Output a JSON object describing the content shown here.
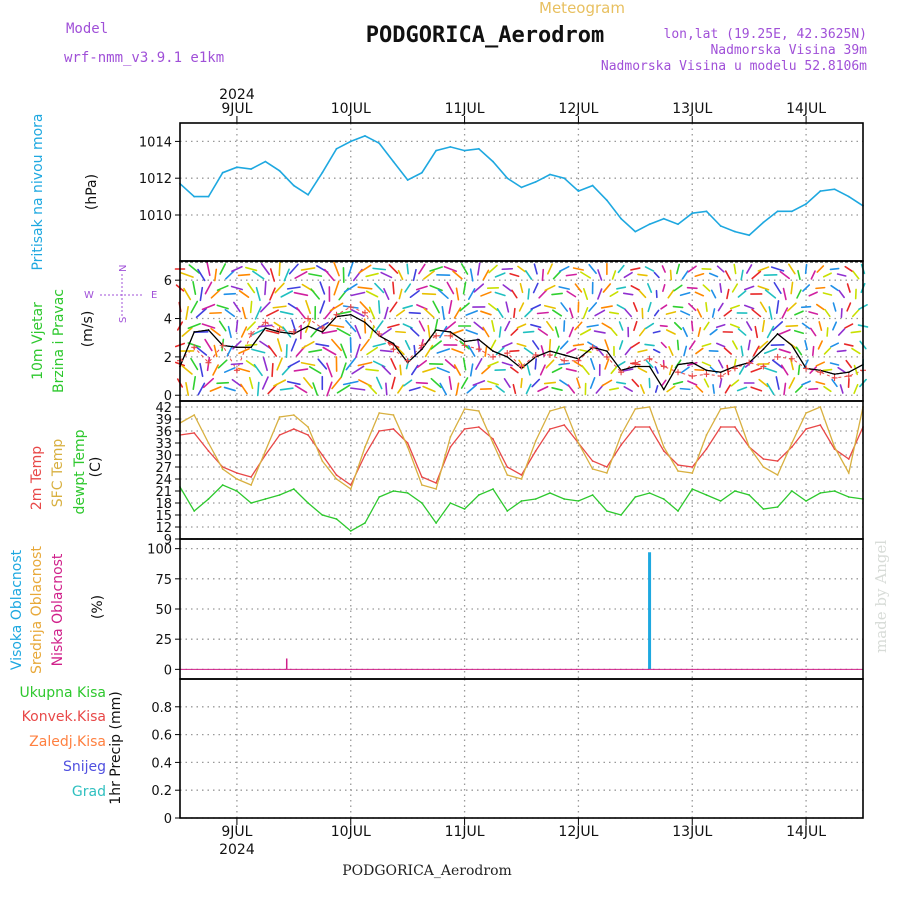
{
  "header": {
    "model_label": "Model",
    "model_name": "wrf-nmm_v3.9.1  e1km",
    "product": "Meteogram",
    "station": "PODGORICA_Aerodrom",
    "coords": "lon,lat (19.25E, 42.3625N)",
    "elevation": "Nadmorska Visina 39m",
    "model_elevation": "Nadmorska Visina u modelu 52.8106m",
    "credit": "made by Angel",
    "footer_station": "PODGORICA_Aerodrom"
  },
  "colors": {
    "pressure": "#1ea8e0",
    "temp_2m": "#e84848",
    "sfc_temp": "#d8b040",
    "dewpoint": "#2ec82e",
    "wind_speed": "#000000",
    "gust": "#e84848",
    "cloud_high": "#1ea8e0",
    "cloud_mid": "#e8a838",
    "cloud_low": "#d0208a",
    "purple_text": "#a050d8",
    "orange_text": "#e8c060"
  },
  "chart_data": [
    {
      "type": "line",
      "panel": "pressure",
      "ylabel": [
        "Pritisak na nivou mora",
        "(hPa)"
      ],
      "ylim": [
        1007.5,
        1015
      ],
      "yticks": [
        1010,
        1012,
        1014
      ],
      "series": [
        {
          "x": [
            0,
            3,
            6,
            9,
            12,
            15,
            18,
            21,
            24,
            27,
            30,
            33,
            36,
            39,
            42,
            45,
            48,
            51,
            54,
            57,
            60,
            63,
            66,
            69,
            72,
            75,
            78,
            81,
            84,
            87,
            90,
            93,
            96,
            99,
            102,
            105,
            108,
            111,
            114,
            117,
            120,
            123,
            126,
            129,
            132,
            135,
            138,
            141,
            144
          ],
          "values": [
            1011.7,
            1011.0,
            1011.0,
            1012.3,
            1012.6,
            1012.5,
            1012.9,
            1012.4,
            1011.6,
            1011.1,
            1012.3,
            1013.6,
            1014.0,
            1014.3,
            1013.9,
            1012.9,
            1011.9,
            1012.3,
            1013.5,
            1013.7,
            1013.5,
            1013.6,
            1012.9,
            1012.0,
            1011.5,
            1011.8,
            1012.2,
            1012.0,
            1011.3,
            1011.6,
            1010.8,
            1009.8,
            1009.1,
            1009.5,
            1009.8,
            1009.5,
            1010.1,
            1010.2,
            1009.4,
            1009.1,
            1008.9,
            1009.6,
            1010.2,
            1010.2,
            1010.6,
            1011.3,
            1011.4,
            1011.0,
            1010.5
          ]
        }
      ]
    },
    {
      "type": "line",
      "panel": "wind",
      "ylabel": [
        "10m Vjetar",
        "Brzina i Pravac",
        "(m/s)"
      ],
      "legend": [
        "N",
        "W",
        "E",
        "S"
      ],
      "ylim": [
        -0.3,
        7
      ],
      "yticks": [
        0,
        2,
        4,
        6
      ],
      "series": [
        {
          "name": "speed",
          "x": [
            0,
            3,
            6,
            9,
            12,
            15,
            18,
            21,
            24,
            27,
            30,
            33,
            36,
            39,
            42,
            45,
            48,
            51,
            54,
            57,
            60,
            63,
            66,
            69,
            72,
            75,
            78,
            81,
            84,
            87,
            90,
            93,
            96,
            99,
            102,
            105,
            108,
            111,
            114,
            117,
            120,
            123,
            126,
            129,
            132,
            135,
            138,
            141,
            144
          ],
          "values": [
            1.5,
            3.3,
            3.4,
            2.6,
            2.5,
            2.5,
            3.5,
            3.3,
            3.2,
            3.6,
            3.3,
            4.1,
            4.2,
            3.8,
            3.1,
            2.7,
            1.7,
            2.4,
            3.4,
            3.3,
            2.8,
            2.9,
            2.3,
            2.0,
            1.4,
            2.0,
            2.3,
            2.1,
            1.9,
            2.5,
            2.3,
            1.3,
            1.5,
            1.5,
            0.3,
            1.6,
            1.7,
            1.3,
            1.2,
            1.5,
            1.7,
            2.4,
            3.2,
            2.6,
            1.4,
            1.3,
            1.1,
            1.2,
            1.6
          ]
        },
        {
          "name": "gust",
          "x": [
            0,
            3,
            6,
            9,
            12,
            15,
            18,
            21,
            24,
            27,
            30,
            33,
            36,
            39,
            42,
            45,
            48,
            51,
            54,
            57,
            60,
            63,
            66,
            69,
            72,
            75,
            78,
            81,
            84,
            87,
            90,
            93,
            96,
            99,
            102,
            105,
            108,
            111,
            114,
            117,
            120,
            123,
            126,
            129,
            132,
            135,
            138,
            141,
            144
          ],
          "values": [
            1.8,
            2.5,
            1.7,
            2.6,
            1.3,
            3.2,
            3.8,
            3.4,
            3.3,
            4.0,
            3.5,
            4.2,
            4.6,
            4.3,
            3.2,
            2.4,
            1.8,
            2.6,
            3.1,
            3.1,
            2.6,
            2.4,
            2.0,
            2.2,
            1.5,
            2.1,
            2.1,
            1.8,
            1.8,
            2.5,
            2.0,
            1.2,
            1.7,
            1.9,
            1.5,
            1.2,
            1.0,
            1.1,
            1.0,
            1.4,
            1.7,
            1.5,
            2.0,
            1.9,
            1.4,
            1.2,
            0.9,
            1.0,
            1.3
          ]
        }
      ]
    },
    {
      "type": "line",
      "panel": "temperature",
      "ylabel": [
        "2m Temp",
        "SFC Temp",
        "dewpt Temp",
        "(C)"
      ],
      "ylim": [
        9,
        43.5
      ],
      "yticks": [
        9,
        12,
        15,
        18,
        21,
        24,
        27,
        30,
        33,
        36,
        39,
        42
      ],
      "series": [
        {
          "name": "2m Temp",
          "x": [
            0,
            3,
            6,
            9,
            12,
            15,
            18,
            21,
            24,
            27,
            30,
            33,
            36,
            39,
            42,
            45,
            48,
            51,
            54,
            57,
            60,
            63,
            66,
            69,
            72,
            75,
            78,
            81,
            84,
            87,
            90,
            93,
            96,
            99,
            102,
            105,
            108,
            111,
            114,
            117,
            120,
            123,
            126,
            129,
            132,
            135,
            138,
            141,
            144
          ],
          "values": [
            35,
            35.5,
            31,
            27,
            25.5,
            24.5,
            30,
            35,
            36.5,
            35,
            30,
            25,
            22.5,
            30,
            36,
            36.5,
            33,
            24.5,
            23,
            32,
            36.5,
            37,
            34,
            27,
            25,
            31,
            36.5,
            37.5,
            33,
            28.5,
            27,
            32.5,
            37,
            37,
            31,
            27.5,
            27,
            31.5,
            37,
            37,
            32,
            29,
            28.5,
            32,
            36.5,
            37.5,
            31.5,
            29,
            37
          ]
        },
        {
          "name": "SFC Temp",
          "x": [
            0,
            3,
            6,
            9,
            12,
            15,
            18,
            21,
            24,
            27,
            30,
            33,
            36,
            39,
            42,
            45,
            48,
            51,
            54,
            57,
            60,
            63,
            66,
            69,
            72,
            75,
            78,
            81,
            84,
            87,
            90,
            93,
            96,
            99,
            102,
            105,
            108,
            111,
            114,
            117,
            120,
            123,
            126,
            129,
            132,
            135,
            138,
            141,
            144
          ],
          "values": [
            38,
            40,
            33,
            26.5,
            24,
            22.5,
            31,
            39.5,
            40,
            37,
            28.5,
            24,
            21.5,
            32,
            40.5,
            40,
            32,
            22.5,
            21.5,
            34.5,
            41.5,
            41,
            33,
            25,
            24,
            33.5,
            41,
            42,
            33,
            26.5,
            25.5,
            35,
            41.5,
            42,
            32,
            26,
            25.5,
            35,
            41.5,
            42,
            32,
            27,
            25,
            33,
            40.5,
            42,
            32,
            25.5,
            42
          ]
        },
        {
          "name": "dewpt Temp",
          "x": [
            0,
            3,
            6,
            9,
            12,
            15,
            18,
            21,
            24,
            27,
            30,
            33,
            36,
            39,
            42,
            45,
            48,
            51,
            54,
            57,
            60,
            63,
            66,
            69,
            72,
            75,
            78,
            81,
            84,
            87,
            90,
            93,
            96,
            99,
            102,
            105,
            108,
            111,
            114,
            117,
            120,
            123,
            126,
            129,
            132,
            135,
            138,
            141,
            144
          ],
          "values": [
            22,
            16,
            19,
            22.5,
            21,
            18,
            19,
            20,
            21.5,
            18,
            15,
            14,
            11,
            13,
            19.5,
            21,
            20.5,
            18,
            13,
            18,
            16.5,
            20,
            21.5,
            16,
            18.5,
            19,
            20.5,
            19,
            18.5,
            20,
            16,
            15,
            19.5,
            20.5,
            19,
            16,
            21.5,
            20,
            18.5,
            21,
            20,
            16.5,
            17,
            21,
            18.5,
            20.5,
            21,
            19.5,
            19
          ]
        }
      ]
    },
    {
      "type": "bar",
      "panel": "cloud",
      "ylabel": [
        "Visoka Oblacnost",
        "Srednja Oblacnost",
        "Niska Oblacnost",
        "(%)"
      ],
      "ylim": [
        -8,
        108
      ],
      "yticks": [
        0,
        25,
        50,
        75,
        100
      ],
      "series": [
        {
          "name": "Visoka Oblacnost",
          "x": [
            99
          ],
          "values": [
            97
          ]
        },
        {
          "name": "Niska Oblacnost",
          "x": [
            22.5
          ],
          "values": [
            9
          ]
        }
      ]
    },
    {
      "type": "line",
      "panel": "precip",
      "ylabel": [
        "1hr Precip (mm)"
      ],
      "legend": [
        "Ukupna Kisa",
        "Konvek.Kisa",
        "Zaledj.Kisa",
        "Snijeg",
        "Grad"
      ],
      "ylim": [
        0,
        1
      ],
      "yticks": [
        0,
        0.2,
        0.4,
        0.6,
        0.8
      ],
      "series": []
    }
  ],
  "x_axis": {
    "year": "2024",
    "day_labels": [
      "9JUL",
      "10JUL",
      "11JUL",
      "12JUL",
      "13JUL",
      "14JUL"
    ],
    "day_positions_hours": [
      12,
      36,
      60,
      84,
      108,
      132
    ],
    "range_hours": [
      0,
      144
    ]
  }
}
